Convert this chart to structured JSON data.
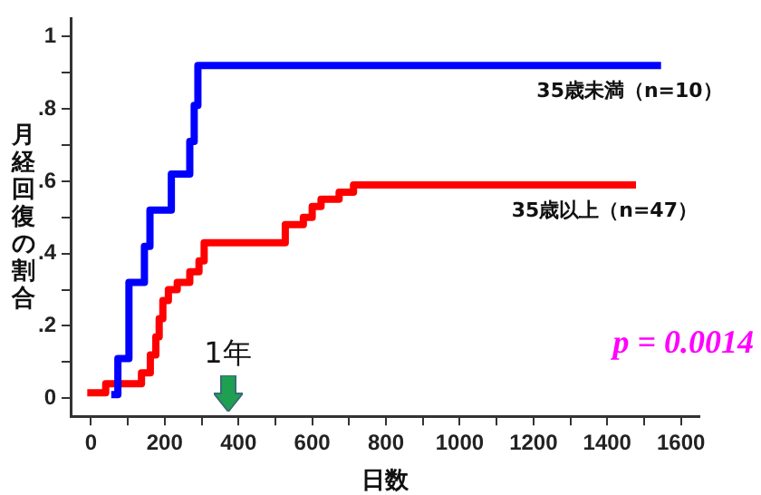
{
  "chart_data": {
    "type": "step",
    "ylabel": "月経回復の割合",
    "xlabel": "日数",
    "xlim": [
      -55,
      1650
    ],
    "xticks": [
      0,
      {
        "value": 100,
        "label": null
      },
      200,
      {
        "value": 300,
        "label": null
      },
      400,
      {
        "value": 500,
        "label": null
      },
      600,
      {
        "value": 700,
        "label": null
      },
      800,
      {
        "value": 900,
        "label": null
      },
      1000,
      {
        "value": 1100,
        "label": null
      },
      1200,
      {
        "value": 1300,
        "label": null
      },
      1400,
      {
        "value": 1500,
        "label": null
      },
      1600
    ],
    "ylim": [
      -0.05,
      1.05
    ],
    "yticks": [
      {
        "value": 0,
        "label": "0"
      },
      {
        "value": 0.1,
        "label": null
      },
      {
        "value": 0.2,
        "label": ".2"
      },
      {
        "value": 0.3,
        "label": null
      },
      {
        "value": 0.4,
        "label": ".4"
      },
      {
        "value": 0.5,
        "label": null
      },
      {
        "value": 0.6,
        "label": ".6"
      },
      {
        "value": 0.7,
        "label": null
      },
      {
        "value": 0.8,
        "label": ".8"
      },
      {
        "value": 0.9,
        "label": null
      },
      {
        "value": 1,
        "label": "1"
      }
    ],
    "grid": false,
    "legend": false,
    "marker": "none",
    "line_style": "solid",
    "series": [
      {
        "name": "35歳未満（n=10）",
        "color": "#0000ff",
        "x": [
          55,
          73,
          103,
          145,
          160,
          218,
          268,
          280,
          290,
          1546
        ],
        "values": [
          0.01,
          0.11,
          0.32,
          0.42,
          0.52,
          0.62,
          0.71,
          0.81,
          0.92,
          0.92
        ]
      },
      {
        "name": "35歳以上（n=47）",
        "color": "#ff0000",
        "x": [
          -10,
          40,
          137,
          161,
          176,
          185,
          195,
          210,
          234,
          268,
          293,
          307,
          527,
          576,
          600,
          624,
          673,
          712,
          1478
        ],
        "values": [
          0.015,
          0.04,
          0.07,
          0.12,
          0.17,
          0.22,
          0.27,
          0.3,
          0.32,
          0.35,
          0.38,
          0.43,
          0.48,
          0.5,
          0.53,
          0.55,
          0.57,
          0.59,
          0.59
        ]
      }
    ],
    "annotations": [
      "1年",
      "p = 0.0014"
    ]
  }
}
